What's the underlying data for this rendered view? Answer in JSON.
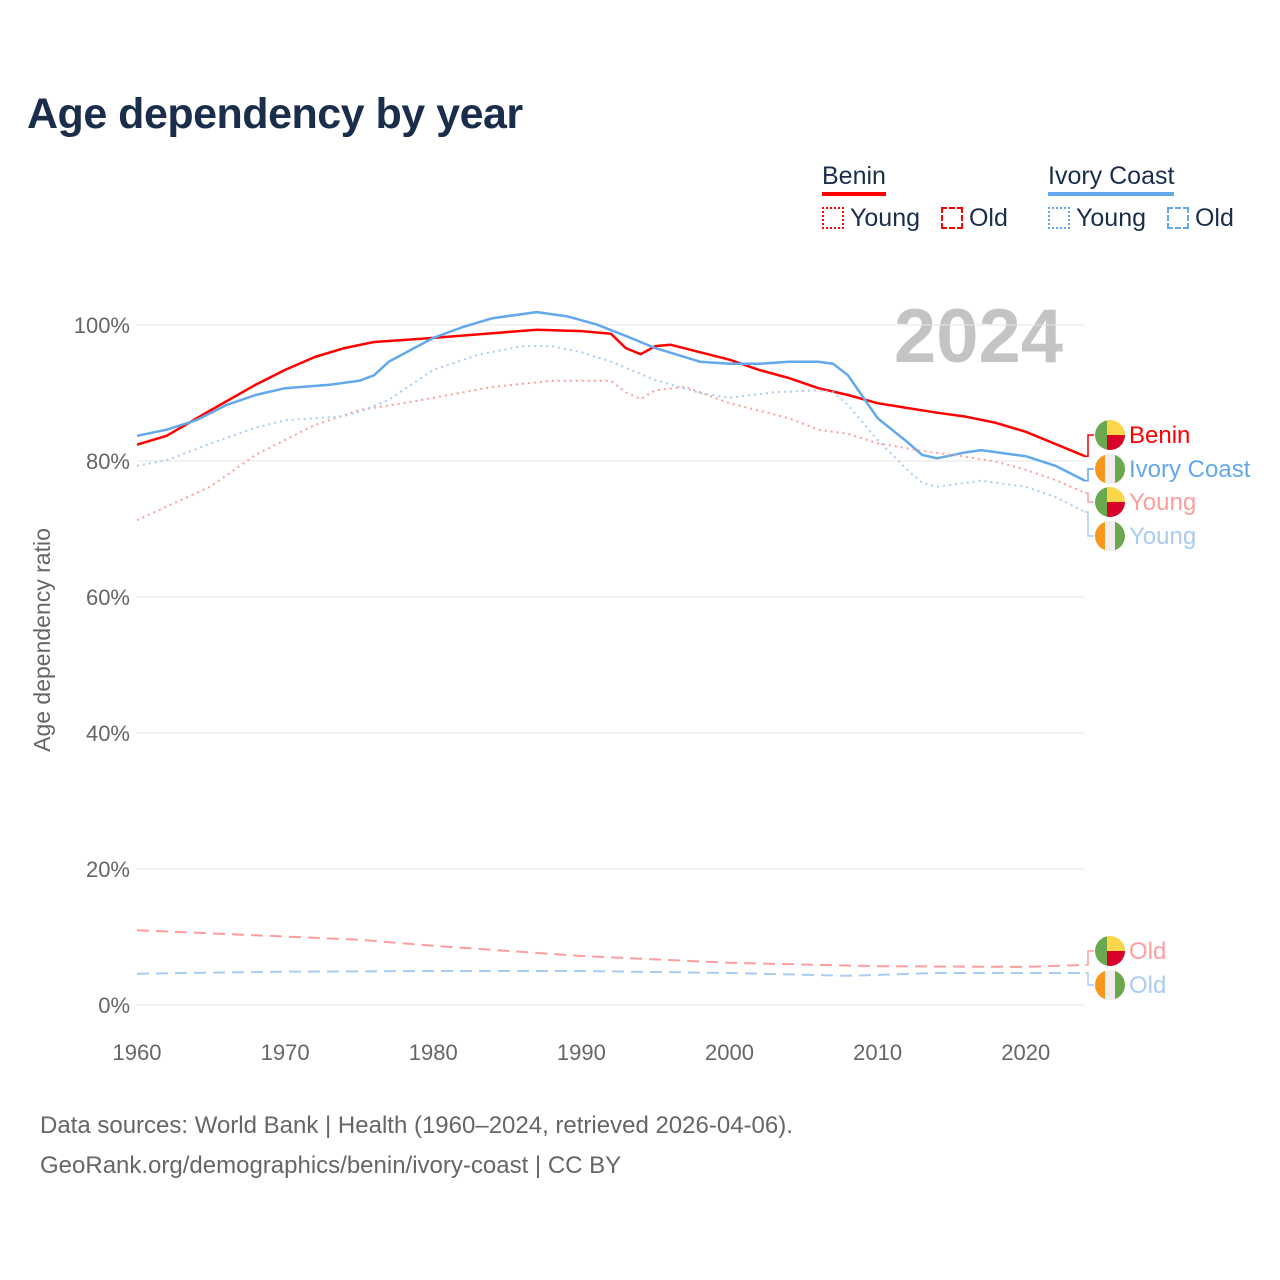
{
  "title": "Age dependency by year",
  "legend": {
    "groups": [
      {
        "name": "Benin",
        "color": "#ff0000",
        "items": [
          "Young",
          "Old"
        ]
      },
      {
        "name": "Ivory Coast",
        "color": "#62a8ea",
        "items": [
          "Young",
          "Old"
        ]
      }
    ]
  },
  "year_label": "2024",
  "footer": {
    "line1": "Data sources: World Bank | Health (1960–2024, retrieved 2026-04-06).",
    "line2": "GeoRank.org/demographics/benin/ivory-coast | CC BY"
  },
  "chart_data": {
    "type": "line",
    "title": "Age dependency by year",
    "xlabel": "",
    "ylabel": "Age dependency ratio",
    "xlim": [
      1960,
      2024
    ],
    "ylim": [
      0,
      100
    ],
    "xticks": [
      1960,
      1970,
      1980,
      1990,
      2000,
      2010,
      2020
    ],
    "yticks": [
      0,
      20,
      40,
      60,
      80,
      100
    ],
    "ytick_labels": [
      "0%",
      "20%",
      "40%",
      "60%",
      "80%",
      "100%"
    ],
    "grid": true,
    "series": [
      {
        "name": "Benin",
        "label": "Benin",
        "style": "solid",
        "color": "#ff0000",
        "x": [
          1960,
          1962,
          1965,
          1968,
          1970,
          1972,
          1974,
          1976,
          1978,
          1980,
          1984,
          1987,
          1990,
          1992,
          1993,
          1994,
          1995,
          1996,
          1998,
          2000,
          2002,
          2004,
          2006,
          2008,
          2010,
          2012,
          2014,
          2016,
          2018,
          2020,
          2022,
          2024
        ],
        "y": [
          82.4,
          83.7,
          87.5,
          91.2,
          93.4,
          95.3,
          96.6,
          97.5,
          97.8,
          98.1,
          98.8,
          99.3,
          99.1,
          98.7,
          96.6,
          95.7,
          96.9,
          97.1,
          96.0,
          94.9,
          93.4,
          92.2,
          90.7,
          89.7,
          88.5,
          87.8,
          87.1,
          86.5,
          85.6,
          84.3,
          82.5,
          80.7
        ]
      },
      {
        "name": "Ivory Coast",
        "label": "Ivory Coast",
        "style": "solid",
        "color": "#62a8ea",
        "x": [
          1960,
          1962,
          1964,
          1966,
          1968,
          1970,
          1973,
          1975,
          1976,
          1977,
          1980,
          1982,
          1984,
          1987,
          1989,
          1991,
          1993,
          1995,
          1998,
          2000,
          2002,
          2004,
          2006,
          2007,
          2008,
          2010,
          2012,
          2013,
          2014,
          2016,
          2017,
          2019,
          2020,
          2022,
          2024
        ],
        "y": [
          83.7,
          84.6,
          86.0,
          88.2,
          89.7,
          90.7,
          91.2,
          91.8,
          92.6,
          94.6,
          98.1,
          99.7,
          101.0,
          101.9,
          101.3,
          100.1,
          98.4,
          96.6,
          94.6,
          94.3,
          94.3,
          94.6,
          94.6,
          94.3,
          92.6,
          86.3,
          82.8,
          80.9,
          80.4,
          81.3,
          81.6,
          81.0,
          80.7,
          79.3,
          77.1
        ]
      },
      {
        "name": "Benin Young",
        "label": "Young",
        "style": "dotted",
        "color": "#ff9d9d",
        "x": [
          1960,
          1965,
          1968,
          1970,
          1972,
          1975,
          1978,
          1980,
          1984,
          1988,
          1992,
          1993,
          1994,
          1995,
          1997,
          2000,
          2004,
          2006,
          2008,
          2010,
          2013,
          2016,
          2018,
          2020,
          2022,
          2024
        ],
        "y": [
          71.3,
          76.3,
          80.9,
          83.1,
          85.3,
          87.5,
          88.5,
          89.3,
          90.9,
          91.8,
          91.8,
          90.1,
          89.1,
          90.4,
          90.9,
          88.5,
          86.3,
          84.6,
          84.0,
          82.6,
          81.5,
          80.6,
          79.9,
          78.7,
          77.2,
          75.3
        ]
      },
      {
        "name": "Ivory Coast Young",
        "label": "Young",
        "style": "dotted",
        "color": "#a9ccf2",
        "x": [
          1960,
          1962,
          1965,
          1968,
          1970,
          1974,
          1975,
          1977,
          1980,
          1983,
          1986,
          1988,
          1990,
          1992,
          1995,
          1998,
          2000,
          2003,
          2006,
          2007,
          2008,
          2010,
          2012,
          2013,
          2014,
          2016,
          2017,
          2020,
          2022,
          2024
        ],
        "y": [
          79.3,
          80.1,
          82.6,
          84.9,
          86.0,
          86.6,
          87.2,
          89.0,
          93.4,
          95.6,
          96.9,
          96.9,
          96.0,
          94.6,
          91.9,
          90.0,
          89.3,
          90.1,
          90.4,
          90.1,
          88.2,
          83.1,
          78.7,
          76.8,
          76.2,
          76.8,
          77.1,
          76.2,
          74.7,
          72.5
        ]
      },
      {
        "name": "Benin Old",
        "label": "Old",
        "style": "dashed",
        "color": "#ff9d9d",
        "x": [
          1960,
          1975,
          1980,
          1990,
          2000,
          2010,
          2020,
          2024
        ],
        "y": [
          11.0,
          9.6,
          8.7,
          7.2,
          6.2,
          5.7,
          5.6,
          5.9
        ]
      },
      {
        "name": "Ivory Coast Old",
        "label": "Old",
        "style": "dashed",
        "color": "#a9ccf2",
        "x": [
          1960,
          1970,
          1980,
          1990,
          2000,
          2008,
          2014,
          2024
        ],
        "y": [
          4.6,
          4.9,
          5.0,
          5.0,
          4.7,
          4.3,
          4.7,
          4.7
        ]
      }
    ],
    "end_labels": [
      {
        "text": "Benin",
        "color": "#ff0000",
        "flag": "benin"
      },
      {
        "text": "Ivory Coast",
        "color": "#62a8ea",
        "flag": "ivory-coast"
      },
      {
        "text": "Young",
        "color": "#ff9d9d",
        "flag": "benin"
      },
      {
        "text": "Young",
        "color": "#a9ccf2",
        "flag": "ivory-coast"
      },
      {
        "text": "Old",
        "color": "#ff9d9d",
        "flag": "benin"
      },
      {
        "text": "Old",
        "color": "#a9ccf2",
        "flag": "ivory-coast"
      }
    ]
  }
}
